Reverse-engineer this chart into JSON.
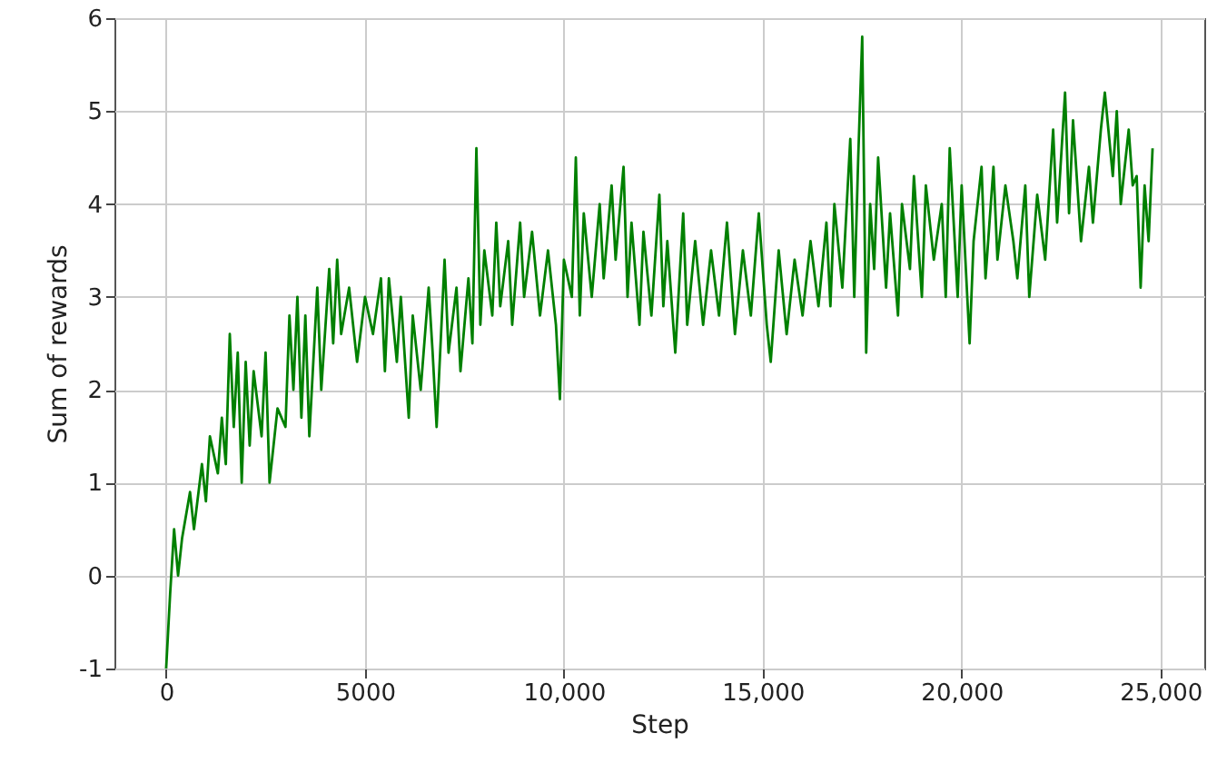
{
  "chart_data": {
    "type": "line",
    "xlabel": "Step",
    "ylabel": "Sum of rewards",
    "xlim": [
      -1300,
      26100
    ],
    "ylim": [
      -1,
      6
    ],
    "xticks": [
      0,
      5000,
      {
        "value": 10000,
        "label": "10,000"
      },
      {
        "value": 15000,
        "label": "15,000"
      },
      {
        "value": 20000,
        "label": "20,000"
      },
      {
        "value": 25000,
        "label": "25,000"
      }
    ],
    "yticks": [
      -1,
      0,
      1,
      2,
      3,
      4,
      5,
      6
    ],
    "grid": true,
    "line_style": "solid",
    "x": [
      0,
      100,
      200,
      300,
      400,
      600,
      700,
      900,
      1000,
      1100,
      1300,
      1400,
      1500,
      1600,
      1700,
      1800,
      1900,
      2000,
      2100,
      2200,
      2400,
      2500,
      2600,
      2800,
      3000,
      3100,
      3200,
      3300,
      3400,
      3500,
      3600,
      3800,
      3900,
      4100,
      4200,
      4300,
      4400,
      4600,
      4800,
      5000,
      5200,
      5400,
      5500,
      5600,
      5800,
      5900,
      6100,
      6200,
      6400,
      6600,
      6700,
      6800,
      7000,
      7100,
      7300,
      7400,
      7600,
      7700,
      7800,
      7900,
      8000,
      8200,
      8300,
      8400,
      8600,
      8700,
      8900,
      9000,
      9200,
      9400,
      9600,
      9800,
      9900,
      10000,
      10200,
      10300,
      10400,
      10500,
      10700,
      10900,
      11000,
      11200,
      11300,
      11500,
      11600,
      11700,
      11900,
      12000,
      12200,
      12400,
      12500,
      12600,
      12800,
      13000,
      13100,
      13300,
      13500,
      13700,
      13900,
      14100,
      14300,
      14500,
      14700,
      14900,
      15100,
      15200,
      15400,
      15600,
      15800,
      16000,
      16200,
      16400,
      16600,
      16700,
      16800,
      17000,
      17100,
      17200,
      17300,
      17400,
      17500,
      17600,
      17700,
      17800,
      17900,
      18100,
      18200,
      18400,
      18500,
      18700,
      18800,
      19000,
      19100,
      19300,
      19500,
      19600,
      19700,
      19900,
      20000,
      20200,
      20300,
      20500,
      20600,
      20800,
      20900,
      21100,
      21300,
      21400,
      21600,
      21700,
      21900,
      22100,
      22300,
      22400,
      22600,
      22700,
      22800,
      23000,
      23200,
      23300,
      23500,
      23600,
      23800,
      23900,
      24000,
      24200,
      24300,
      24400,
      24500,
      24600,
      24700,
      24800
    ],
    "series": [
      {
        "color": "#008000",
        "values": [
          -1,
          -0.2,
          0.5,
          0.0,
          0.4,
          0.9,
          0.5,
          1.2,
          0.8,
          1.5,
          1.1,
          1.7,
          1.2,
          2.6,
          1.6,
          2.4,
          1.0,
          2.3,
          1.4,
          2.2,
          1.5,
          2.4,
          1.0,
          1.8,
          1.6,
          2.8,
          2.0,
          3.0,
          1.7,
          2.8,
          1.5,
          3.1,
          2.0,
          3.3,
          2.5,
          3.4,
          2.6,
          3.1,
          2.3,
          3.0,
          2.6,
          3.2,
          2.2,
          3.2,
          2.3,
          3.0,
          1.7,
          2.8,
          2.0,
          3.1,
          2.4,
          1.6,
          3.4,
          2.4,
          3.1,
          2.2,
          3.2,
          2.5,
          4.6,
          2.7,
          3.5,
          2.8,
          3.8,
          2.9,
          3.6,
          2.7,
          3.8,
          3.0,
          3.7,
          2.8,
          3.5,
          2.7,
          1.9,
          3.4,
          3.0,
          4.5,
          2.8,
          3.9,
          3.0,
          4.0,
          3.2,
          4.2,
          3.4,
          4.4,
          3.0,
          3.8,
          2.7,
          3.7,
          2.8,
          4.1,
          2.9,
          3.6,
          2.4,
          3.9,
          2.7,
          3.6,
          2.7,
          3.5,
          2.8,
          3.8,
          2.6,
          3.5,
          2.8,
          3.9,
          2.7,
          2.3,
          3.5,
          2.6,
          3.4,
          2.8,
          3.6,
          2.9,
          3.8,
          2.9,
          4.0,
          3.1,
          3.9,
          4.7,
          3.0,
          4.5,
          5.8,
          2.4,
          4.0,
          3.3,
          4.5,
          3.1,
          3.9,
          2.8,
          4.0,
          3.3,
          4.3,
          3.0,
          4.2,
          3.4,
          4.0,
          3.0,
          4.6,
          3.0,
          4.2,
          2.5,
          3.6,
          4.4,
          3.2,
          4.4,
          3.4,
          4.2,
          3.6,
          3.2,
          4.2,
          3.0,
          4.1,
          3.4,
          4.8,
          3.8,
          5.2,
          3.9,
          4.9,
          3.6,
          4.4,
          3.8,
          4.8,
          5.2,
          4.3,
          5.0,
          4.0,
          4.8,
          4.2,
          4.3,
          3.1,
          4.2,
          3.6,
          4.6
        ]
      }
    ]
  }
}
